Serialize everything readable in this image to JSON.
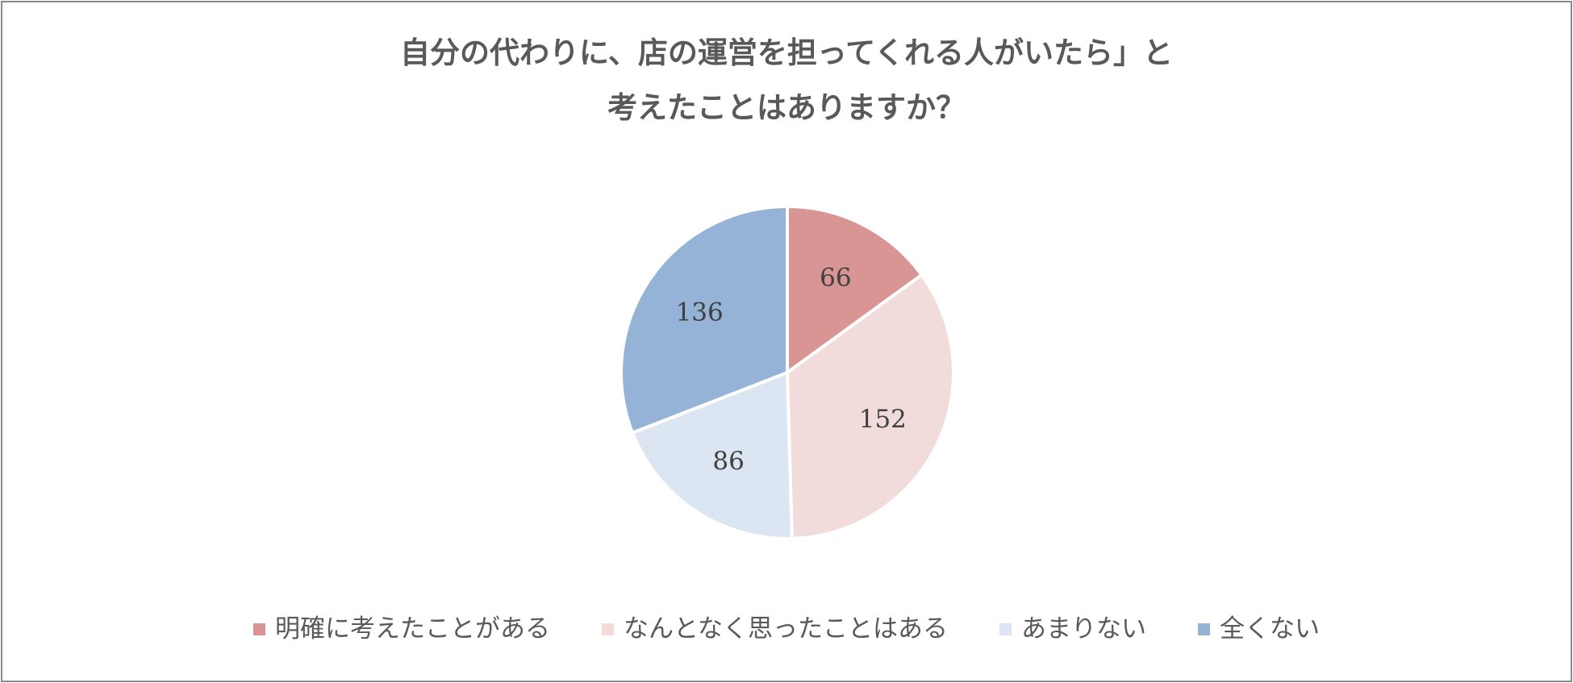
{
  "chart_data": {
    "type": "pie",
    "title_lines": [
      "自分の代わりに、店の運営を担ってくれる人がいたら」と",
      "考えたことはありますか？"
    ],
    "categories": [
      "明確に考えたことがある",
      "なんとなく思ったことはある",
      "あまりない",
      "全くない"
    ],
    "values": [
      66,
      152,
      86,
      136
    ],
    "colors": [
      "#d99594",
      "#f2dcdb",
      "#dce6f2",
      "#95b3d7"
    ],
    "data_labels": [
      "66",
      "152",
      "86",
      "136"
    ],
    "legend_position": "bottom",
    "start_angle": "12 o'clock",
    "direction": "clockwise"
  }
}
